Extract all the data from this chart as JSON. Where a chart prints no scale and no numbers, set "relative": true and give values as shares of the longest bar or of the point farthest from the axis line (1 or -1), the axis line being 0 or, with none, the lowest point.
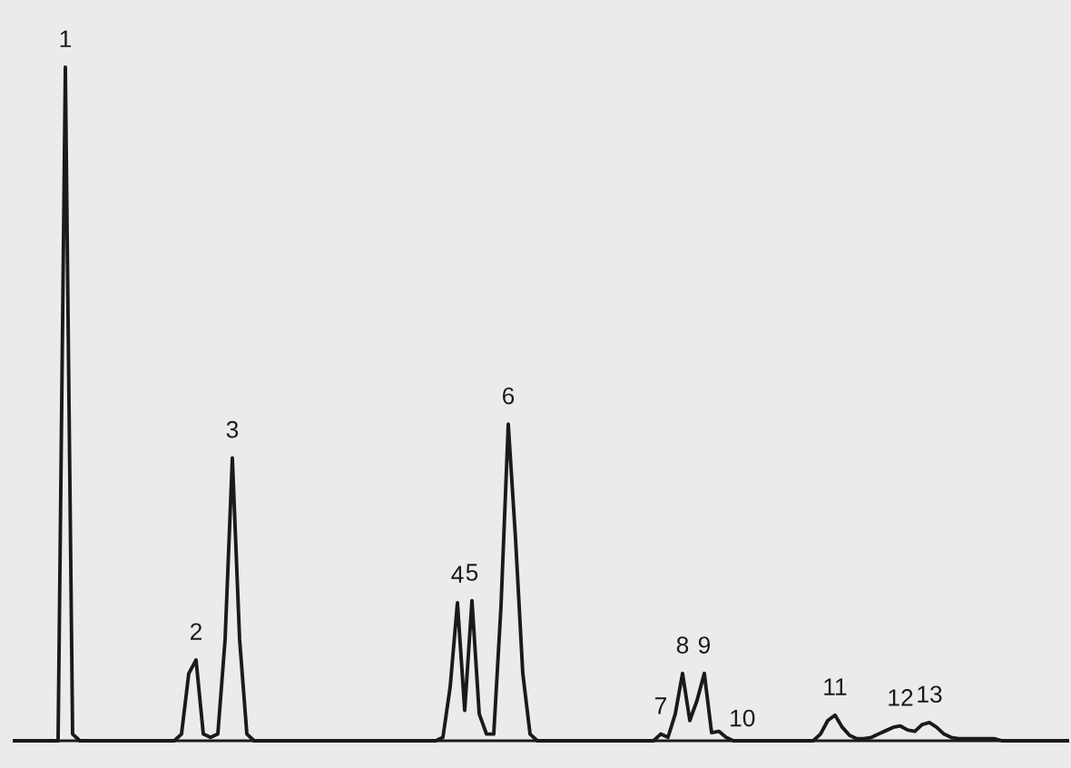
{
  "chart_data": {
    "type": "line",
    "relative": true,
    "color": "#1a1a1a",
    "categories": [
      null,
      null,
      null,
      null,
      null,
      null,
      null,
      null,
      null,
      null,
      null,
      null,
      null,
      null,
      null,
      null,
      null,
      null,
      null,
      null,
      null,
      null,
      null,
      null,
      null,
      null,
      null,
      null,
      null,
      null,
      null,
      null,
      null,
      null,
      null,
      null,
      null,
      null,
      null,
      null,
      null,
      null,
      null,
      null,
      null,
      null,
      null,
      null,
      null,
      null,
      null,
      null,
      null,
      null,
      null,
      null,
      null,
      null,
      null,
      null,
      null,
      null,
      null,
      null,
      null,
      null,
      null,
      null,
      null,
      null,
      null,
      null,
      null,
      null,
      null,
      null,
      null,
      null,
      null,
      null,
      null,
      null,
      null,
      null,
      null,
      null,
      null,
      null,
      null,
      null,
      null,
      null,
      null,
      null,
      null,
      null,
      null,
      null,
      null,
      null,
      null,
      null,
      null,
      null,
      null,
      null,
      null,
      null,
      null,
      null,
      null,
      null,
      null,
      null,
      null,
      null,
      null,
      null,
      null,
      null,
      null,
      null,
      null,
      null,
      null,
      null,
      null,
      null,
      null,
      null,
      null,
      null,
      null,
      null,
      null,
      null,
      null,
      null,
      null,
      null,
      null,
      null,
      null,
      null,
      null,
      null
    ],
    "values": [
      0,
      0,
      0,
      0,
      0,
      0,
      0,
      1,
      0.01,
      0,
      0,
      0,
      0,
      0,
      0,
      0,
      0,
      0,
      0,
      0,
      0,
      0,
      0,
      0.01,
      0.1,
      0.12,
      0.01,
      0.005,
      0.01,
      0.15,
      0.42,
      0.15,
      0.01,
      0,
      0,
      0,
      0,
      0,
      0,
      0,
      0,
      0,
      0,
      0,
      0,
      0,
      0,
      0,
      0,
      0,
      0,
      0,
      0,
      0,
      0,
      0,
      0,
      0,
      0,
      0.005,
      0.08,
      0.205,
      0.045,
      0.208,
      0.04,
      0.01,
      0.01,
      0.2,
      0.47,
      0.3,
      0.1,
      0.01,
      0,
      0,
      0,
      0,
      0,
      0,
      0,
      0,
      0,
      0,
      0,
      0,
      0,
      0,
      0,
      0,
      0,
      0.01,
      0.005,
      0.04,
      0.1,
      0.03,
      0.06,
      0.1,
      0.012,
      0.014,
      0.005,
      0,
      0,
      0,
      0,
      0,
      0,
      0,
      0,
      0,
      0,
      0,
      0,
      0.01,
      0.03,
      0.038,
      0.02,
      0.008,
      0.003,
      0.003,
      0.005,
      0.01,
      0.015,
      0.02,
      0.022,
      0.016,
      0.014,
      0.024,
      0.027,
      0.02,
      0.01,
      0.005,
      0.003,
      0.003,
      0.003,
      0.003,
      0.003,
      0.003,
      0,
      0,
      0,
      0,
      0,
      0,
      0,
      0,
      0,
      0
    ],
    "annotations": [
      "1",
      "2",
      "3",
      "4",
      "5",
      "6",
      "7",
      "8",
      "9",
      "10",
      "11",
      "12",
      "13"
    ]
  }
}
